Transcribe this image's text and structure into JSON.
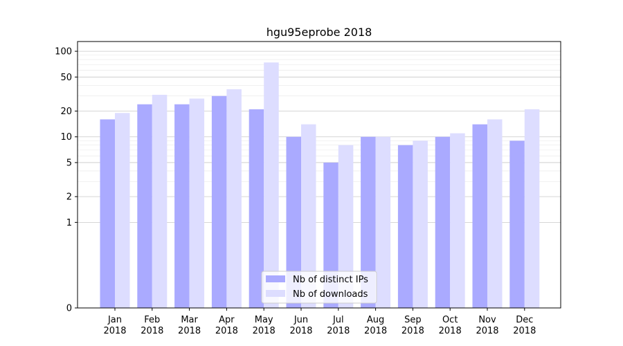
{
  "chart_data": {
    "type": "bar",
    "title": "hgu95eprobe 2018",
    "xlabel": "",
    "ylabel": "",
    "scale": "symlog",
    "ylim": [
      0,
      130
    ],
    "grid": "horizontal",
    "legend_position": "bottom-center",
    "categories": [
      [
        "Jan",
        "2018"
      ],
      [
        "Feb",
        "2018"
      ],
      [
        "Mar",
        "2018"
      ],
      [
        "Apr",
        "2018"
      ],
      [
        "May",
        "2018"
      ],
      [
        "Jun",
        "2018"
      ],
      [
        "Jul",
        "2018"
      ],
      [
        "Aug",
        "2018"
      ],
      [
        "Sep",
        "2018"
      ],
      [
        "Oct",
        "2018"
      ],
      [
        "Nov",
        "2018"
      ],
      [
        "Dec",
        "2018"
      ]
    ],
    "yticks": [
      0,
      1,
      2,
      5,
      10,
      20,
      50,
      100
    ],
    "series": [
      {
        "name": "Nb of distinct IPs",
        "color": "#aaaaff",
        "values": [
          16,
          24,
          24,
          30,
          21,
          10,
          5,
          10,
          8,
          10,
          14,
          9
        ]
      },
      {
        "name": "Nb of downloads",
        "color": "#ddddff",
        "values": [
          19,
          31,
          28,
          36,
          74,
          14,
          8,
          10,
          9,
          11,
          16,
          21
        ]
      }
    ]
  }
}
